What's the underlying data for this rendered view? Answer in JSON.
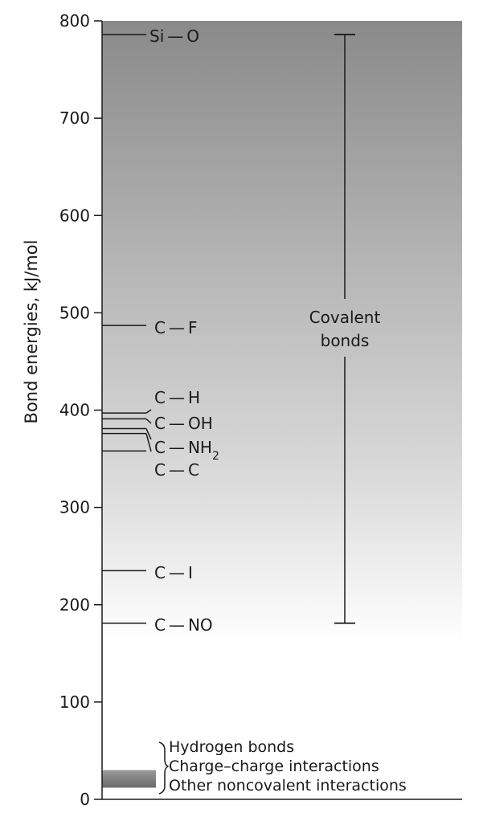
{
  "chart_data": {
    "type": "bar",
    "title": "",
    "xlabel": "",
    "ylabel": "Bond energies, kJ/mol",
    "ylim": [
      0,
      800
    ],
    "y_ticks": [
      "0",
      "100",
      "200",
      "300",
      "400",
      "500",
      "600",
      "700",
      "800"
    ],
    "grid": false,
    "background_gradient": {
      "top_color": "#8a8a8a",
      "bottom_color": "#ffffff"
    },
    "bonds": [
      {
        "label": "Si — O",
        "value": 786
      },
      {
        "label": "C — F",
        "value": 487
      },
      {
        "label": "C — H",
        "value": 397
      },
      {
        "label": "C — OH",
        "value": 391
      },
      {
        "label": "C — NH",
        "label_sub": "2",
        "value": 381
      },
      {
        "label": "C — C",
        "value": 376
      },
      {
        "label": "C — I",
        "value": 358
      },
      {
        "label": "C — NO",
        "value": 235
      },
      {
        "label": "",
        "value": 181
      }
    ],
    "covalent_range": {
      "label_lines": [
        "Covalent",
        "bonds"
      ],
      "min": 181,
      "max": 786
    },
    "noncovalent": {
      "range": [
        12,
        30
      ],
      "items": [
        "Hydrogen bonds",
        "Charge–charge interactions",
        "Other noncovalent interactions"
      ]
    }
  }
}
